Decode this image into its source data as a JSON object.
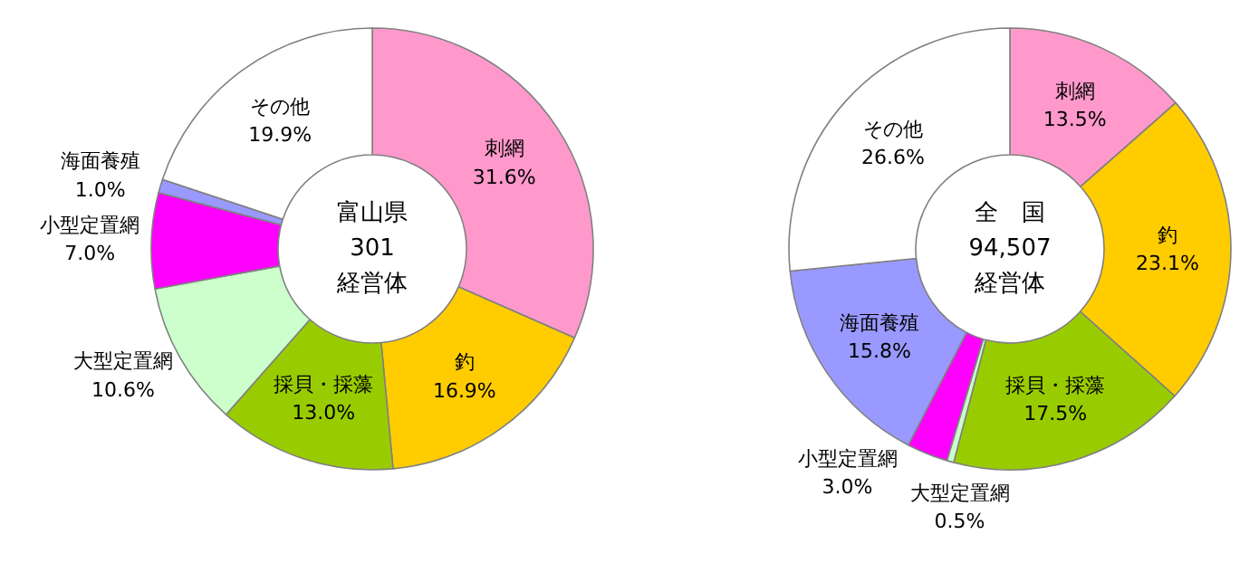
{
  "chart_data": [
    {
      "type": "donut",
      "title": "富山県\n301\n経営体",
      "categories": [
        "刺網",
        "釣",
        "採貝・採藻",
        "大型定置網",
        "小型定置網",
        "海面養殖",
        "その他"
      ],
      "values": [
        31.6,
        16.9,
        13.0,
        10.6,
        7.0,
        1.0,
        19.9
      ],
      "value_labels": [
        "31.6%",
        "16.9%",
        "13.0%",
        "10.6%",
        "7.0%",
        "1.0%",
        "19.9%"
      ],
      "colors": [
        "#ff99cc",
        "#ffcc00",
        "#99cc00",
        "#ccffcc",
        "#ff00ff",
        "#9999ff",
        "#ffffff"
      ]
    },
    {
      "type": "donut",
      "title": "全　国\n94,507\n経営体",
      "categories": [
        "刺網",
        "釣",
        "採貝・採藻",
        "大型定置網",
        "小型定置網",
        "海面養殖",
        "その他"
      ],
      "values": [
        13.5,
        23.1,
        17.5,
        0.5,
        3.0,
        15.8,
        26.6
      ],
      "value_labels": [
        "13.5%",
        "23.1%",
        "17.5%",
        "0.5%",
        "3.0%",
        "15.8%",
        "26.6%"
      ],
      "colors": [
        "#ff99cc",
        "#ffcc00",
        "#99cc00",
        "#ccffcc",
        "#ff00ff",
        "#9999ff",
        "#ffffff"
      ]
    }
  ]
}
